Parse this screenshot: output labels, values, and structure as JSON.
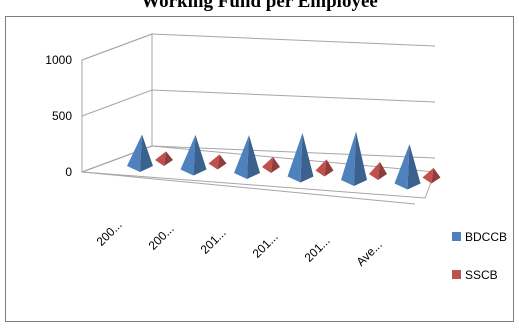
{
  "chart_data": {
    "type": "bar",
    "subtype": "3d-pyramid",
    "title": "Working Fund per Employee",
    "categories": [
      "200...",
      "200...",
      "201...",
      "201...",
      "201...",
      "Ave..."
    ],
    "series": [
      {
        "name": "BDCCB",
        "values": [
          390,
          430,
          470,
          540,
          600,
          490
        ],
        "color": "#4f81bd"
      },
      {
        "name": "SSCB",
        "values": [
          85,
          90,
          100,
          110,
          120,
          95
        ],
        "color": "#c0504d"
      }
    ],
    "yticks": [
      0,
      500,
      1000
    ],
    "ylim": [
      0,
      1000
    ],
    "legend_position": "right",
    "grid": true
  }
}
